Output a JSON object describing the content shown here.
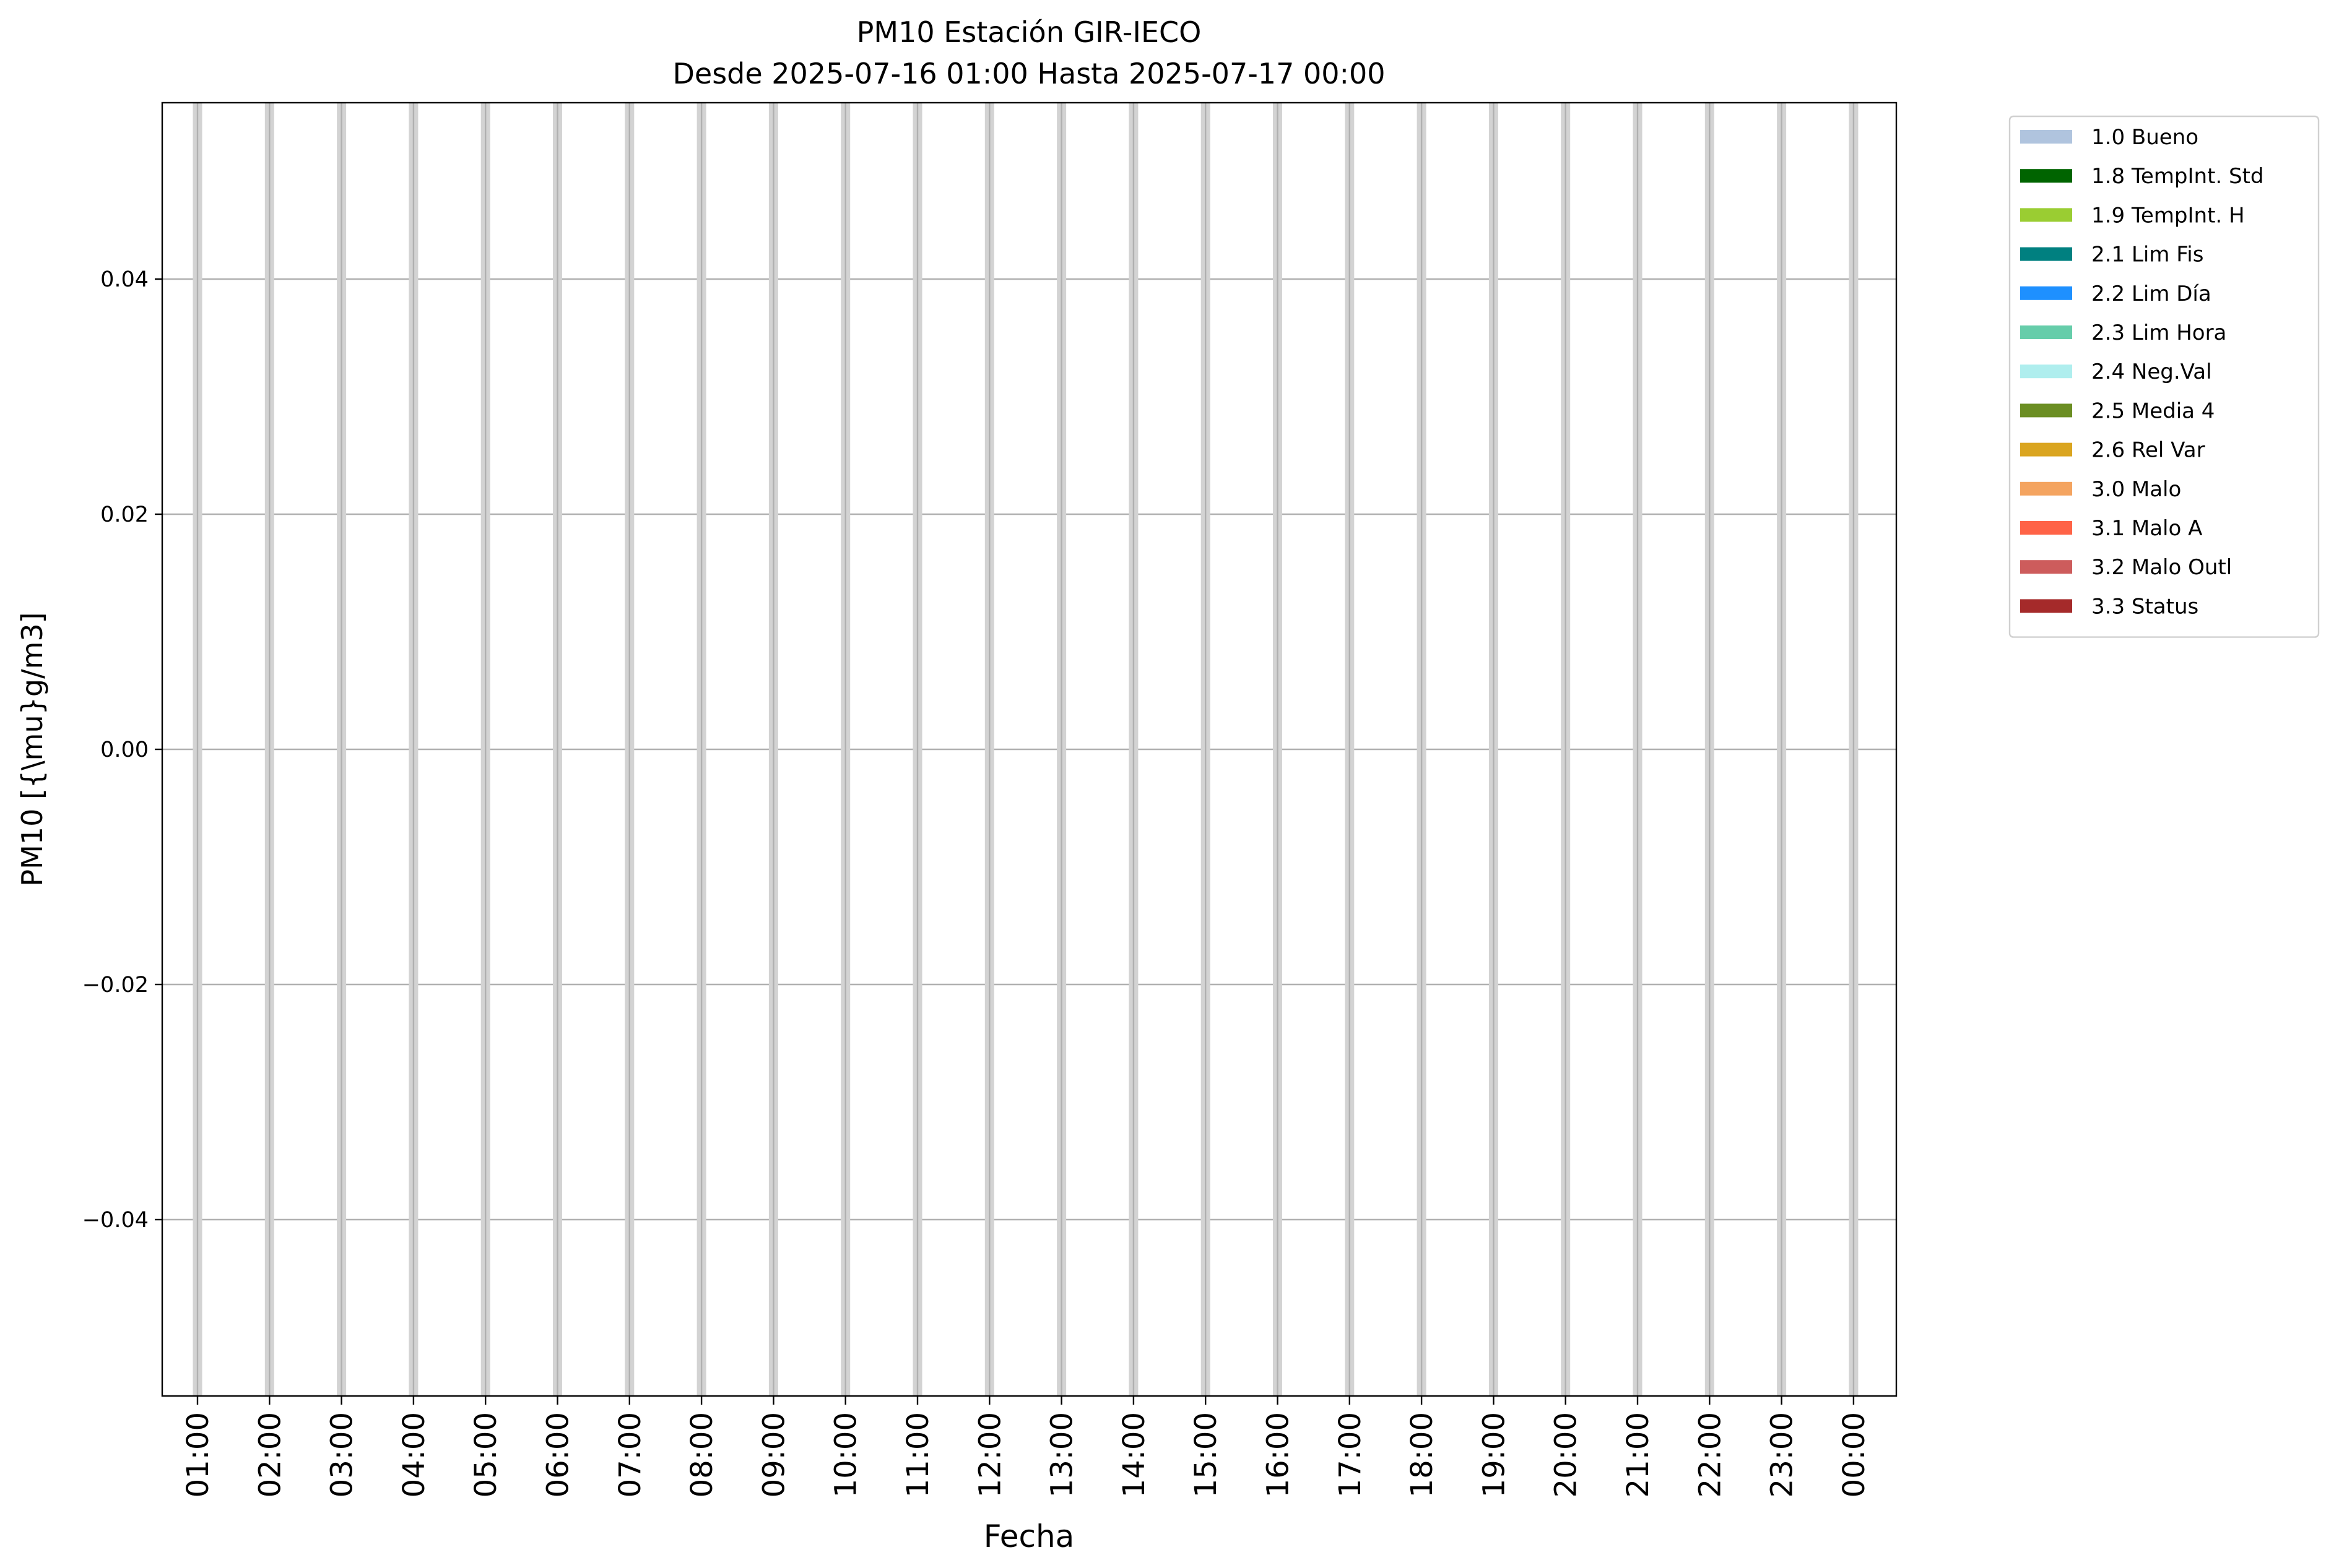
{
  "chart_data": {
    "type": "bar",
    "title": "PM10 Estación GIR-IECO",
    "subtitle": "Desde 2025-07-16 01:00 Hasta 2025-07-17 00:00",
    "xlabel": "Fecha",
    "ylabel": "PM10 [{\\mu}g/m3]",
    "ylim": [
      -0.055,
      0.055
    ],
    "yticks": [
      -0.04,
      -0.02,
      0.0,
      0.02,
      0.04
    ],
    "ytick_labels": [
      "−0.04",
      "−0.02",
      "0.00",
      "0.02",
      "0.04"
    ],
    "categories": [
      "01:00",
      "02:00",
      "03:00",
      "04:00",
      "05:00",
      "06:00",
      "07:00",
      "08:00",
      "09:00",
      "10:00",
      "11:00",
      "12:00",
      "13:00",
      "14:00",
      "15:00",
      "16:00",
      "17:00",
      "18:00",
      "19:00",
      "20:00",
      "21:00",
      "22:00",
      "23:00",
      "00:00"
    ],
    "values": [
      null,
      null,
      null,
      null,
      null,
      null,
      null,
      null,
      null,
      null,
      null,
      null,
      null,
      null,
      null,
      null,
      null,
      null,
      null,
      null,
      null,
      null,
      null,
      null
    ],
    "bar_color": "#d3d3d3",
    "grid": true,
    "legend_position": "outside-top-right",
    "legend": [
      {
        "label": "1.0 Bueno",
        "color": "#b0c4de"
      },
      {
        "label": "1.8 TempInt. Std",
        "color": "#006400"
      },
      {
        "label": "1.9 TempInt. H",
        "color": "#9acd32"
      },
      {
        "label": "2.1 Lim Fis",
        "color": "#008080"
      },
      {
        "label": "2.2 Lim Día",
        "color": "#1e90ff"
      },
      {
        "label": "2.3 Lim Hora",
        "color": "#66cdaa"
      },
      {
        "label": "2.4 Neg.Val",
        "color": "#afeeee"
      },
      {
        "label": "2.5 Media 4",
        "color": "#6b8e23"
      },
      {
        "label": "2.6 Rel Var",
        "color": "#daa520"
      },
      {
        "label": "3.0 Malo",
        "color": "#f4a460"
      },
      {
        "label": "3.1 Malo A",
        "color": "#ff6347"
      },
      {
        "label": "3.2 Malo Outl",
        "color": "#cd5c5c"
      },
      {
        "label": "3.3 Status",
        "color": "#a52a2a"
      }
    ]
  }
}
